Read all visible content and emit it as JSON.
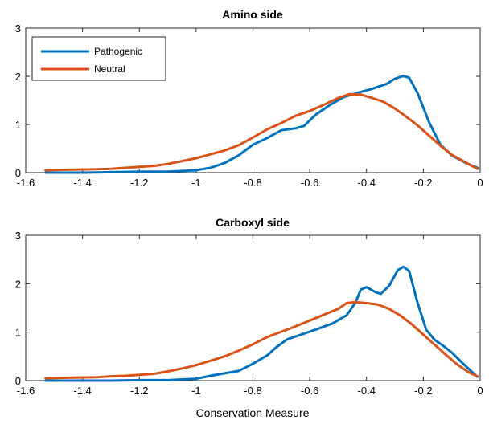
{
  "chart_data": [
    {
      "type": "line",
      "title": "Amino side",
      "xlabel": "",
      "ylabel": "",
      "xlim": [
        -1.6,
        0
      ],
      "ylim": [
        0,
        3
      ],
      "xticks": [
        "-1.6",
        "-1.4",
        "-1.2",
        "-1",
        "-0.8",
        "-0.6",
        "-0.4",
        "-0.2",
        "0"
      ],
      "yticks": [
        "0",
        "1",
        "2",
        "3"
      ],
      "legend": "top-left",
      "grid": false,
      "series": [
        {
          "name": "Pathogenic",
          "color": "#0072BD",
          "points": [
            [
              -1.53,
              0.0
            ],
            [
              -1.4,
              0.0
            ],
            [
              -1.3,
              0.01
            ],
            [
              -1.2,
              0.02
            ],
            [
              -1.1,
              0.02
            ],
            [
              -1.0,
              0.05
            ],
            [
              -0.95,
              0.1
            ],
            [
              -0.9,
              0.2
            ],
            [
              -0.85,
              0.36
            ],
            [
              -0.8,
              0.58
            ],
            [
              -0.75,
              0.72
            ],
            [
              -0.7,
              0.88
            ],
            [
              -0.65,
              0.92
            ],
            [
              -0.62,
              0.97
            ],
            [
              -0.58,
              1.2
            ],
            [
              -0.53,
              1.4
            ],
            [
              -0.48,
              1.57
            ],
            [
              -0.43,
              1.66
            ],
            [
              -0.38,
              1.74
            ],
            [
              -0.33,
              1.84
            ],
            [
              -0.3,
              1.95
            ],
            [
              -0.27,
              2.01
            ],
            [
              -0.25,
              1.97
            ],
            [
              -0.22,
              1.65
            ],
            [
              -0.18,
              1.05
            ],
            [
              -0.14,
              0.58
            ],
            [
              -0.1,
              0.36
            ],
            [
              -0.05,
              0.2
            ],
            [
              -0.01,
              0.1
            ]
          ]
        },
        {
          "name": "Neutral",
          "color": "#D95319",
          "points": [
            [
              -1.53,
              0.05
            ],
            [
              -1.45,
              0.06
            ],
            [
              -1.35,
              0.07
            ],
            [
              -1.3,
              0.08
            ],
            [
              -1.25,
              0.1
            ],
            [
              -1.2,
              0.12
            ],
            [
              -1.15,
              0.14
            ],
            [
              -1.1,
              0.18
            ],
            [
              -1.05,
              0.24
            ],
            [
              -1.0,
              0.3
            ],
            [
              -0.95,
              0.38
            ],
            [
              -0.9,
              0.46
            ],
            [
              -0.85,
              0.57
            ],
            [
              -0.8,
              0.73
            ],
            [
              -0.75,
              0.9
            ],
            [
              -0.7,
              1.03
            ],
            [
              -0.65,
              1.18
            ],
            [
              -0.6,
              1.28
            ],
            [
              -0.55,
              1.41
            ],
            [
              -0.5,
              1.55
            ],
            [
              -0.46,
              1.63
            ],
            [
              -0.42,
              1.62
            ],
            [
              -0.38,
              1.55
            ],
            [
              -0.34,
              1.47
            ],
            [
              -0.3,
              1.33
            ],
            [
              -0.26,
              1.16
            ],
            [
              -0.22,
              0.98
            ],
            [
              -0.18,
              0.77
            ],
            [
              -0.14,
              0.56
            ],
            [
              -0.1,
              0.37
            ],
            [
              -0.05,
              0.21
            ],
            [
              -0.01,
              0.08
            ]
          ]
        }
      ]
    },
    {
      "type": "line",
      "title": "Carboxyl side",
      "xlabel": "Conservation Measure",
      "ylabel": "",
      "xlim": [
        -1.6,
        0
      ],
      "ylim": [
        0,
        3
      ],
      "xticks": [
        "-1.6",
        "-1.4",
        "-1.2",
        "-1",
        "-0.8",
        "-0.6",
        "-0.4",
        "-0.2",
        "0"
      ],
      "yticks": [
        "0",
        "1",
        "2",
        "3"
      ],
      "grid": false,
      "series": [
        {
          "name": "Pathogenic",
          "color": "#0072BD",
          "points": [
            [
              -1.53,
              0.0
            ],
            [
              -1.4,
              0.0
            ],
            [
              -1.3,
              0.0
            ],
            [
              -1.2,
              0.01
            ],
            [
              -1.1,
              0.01
            ],
            [
              -1.0,
              0.04
            ],
            [
              -0.95,
              0.1
            ],
            [
              -0.9,
              0.15
            ],
            [
              -0.85,
              0.2
            ],
            [
              -0.8,
              0.35
            ],
            [
              -0.75,
              0.52
            ],
            [
              -0.72,
              0.68
            ],
            [
              -0.68,
              0.85
            ],
            [
              -0.63,
              0.95
            ],
            [
              -0.58,
              1.05
            ],
            [
              -0.52,
              1.18
            ],
            [
              -0.47,
              1.35
            ],
            [
              -0.44,
              1.6
            ],
            [
              -0.42,
              1.88
            ],
            [
              -0.4,
              1.93
            ],
            [
              -0.37,
              1.83
            ],
            [
              -0.35,
              1.79
            ],
            [
              -0.32,
              1.96
            ],
            [
              -0.29,
              2.28
            ],
            [
              -0.27,
              2.35
            ],
            [
              -0.25,
              2.26
            ],
            [
              -0.22,
              1.6
            ],
            [
              -0.19,
              1.05
            ],
            [
              -0.16,
              0.84
            ],
            [
              -0.13,
              0.72
            ],
            [
              -0.1,
              0.58
            ],
            [
              -0.06,
              0.35
            ],
            [
              -0.01,
              0.08
            ]
          ]
        },
        {
          "name": "Neutral",
          "color": "#D95319",
          "points": [
            [
              -1.53,
              0.05
            ],
            [
              -1.45,
              0.06
            ],
            [
              -1.35,
              0.07
            ],
            [
              -1.3,
              0.09
            ],
            [
              -1.25,
              0.1
            ],
            [
              -1.2,
              0.12
            ],
            [
              -1.15,
              0.14
            ],
            [
              -1.1,
              0.19
            ],
            [
              -1.05,
              0.25
            ],
            [
              -1.0,
              0.32
            ],
            [
              -0.95,
              0.41
            ],
            [
              -0.9,
              0.5
            ],
            [
              -0.85,
              0.62
            ],
            [
              -0.8,
              0.75
            ],
            [
              -0.75,
              0.9
            ],
            [
              -0.7,
              1.01
            ],
            [
              -0.65,
              1.12
            ],
            [
              -0.6,
              1.24
            ],
            [
              -0.55,
              1.36
            ],
            [
              -0.5,
              1.48
            ],
            [
              -0.47,
              1.6
            ],
            [
              -0.44,
              1.62
            ],
            [
              -0.4,
              1.6
            ],
            [
              -0.36,
              1.57
            ],
            [
              -0.32,
              1.48
            ],
            [
              -0.28,
              1.34
            ],
            [
              -0.24,
              1.16
            ],
            [
              -0.2,
              0.95
            ],
            [
              -0.16,
              0.74
            ],
            [
              -0.12,
              0.53
            ],
            [
              -0.08,
              0.33
            ],
            [
              -0.04,
              0.17
            ],
            [
              -0.01,
              0.09
            ]
          ]
        }
      ]
    }
  ]
}
